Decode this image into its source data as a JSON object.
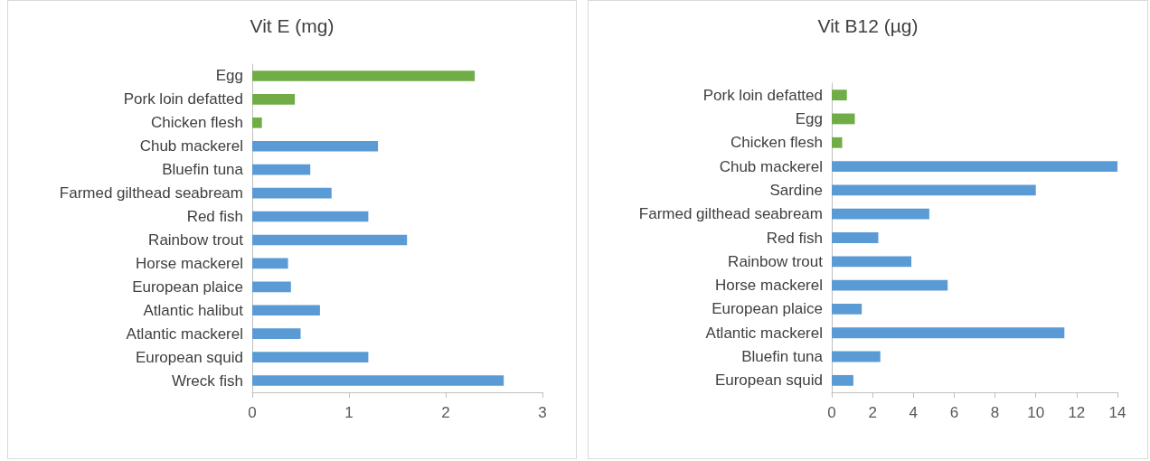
{
  "chart_data": [
    {
      "type": "bar",
      "orientation": "horizontal",
      "title": "Vit E (mg)",
      "categories": [
        "Egg",
        "Pork loin defatted",
        "Chicken flesh",
        "Chub mackerel",
        "Bluefin tuna",
        "Farmed gilthead seabream",
        "Red fish",
        "Rainbow trout",
        "Horse mackerel",
        "European plaice",
        "Atlantic halibut",
        "Atlantic mackerel",
        "European squid",
        "Wreck fish"
      ],
      "values": [
        2.3,
        0.44,
        0.1,
        1.3,
        0.6,
        0.82,
        1.2,
        1.6,
        0.37,
        0.4,
        0.7,
        0.5,
        1.2,
        2.6
      ],
      "colors": [
        "#70ad47",
        "#70ad47",
        "#70ad47",
        "#5b9bd5",
        "#5b9bd5",
        "#5b9bd5",
        "#5b9bd5",
        "#5b9bd5",
        "#5b9bd5",
        "#5b9bd5",
        "#5b9bd5",
        "#5b9bd5",
        "#5b9bd5",
        "#5b9bd5"
      ],
      "xlim": [
        0,
        3
      ],
      "xticks": [
        0,
        1,
        2,
        3
      ],
      "grid": false
    },
    {
      "type": "bar",
      "orientation": "horizontal",
      "title": "Vit B12 (µg)",
      "categories": [
        "Pork loin defatted",
        "Egg",
        "Chicken flesh",
        "Chub mackerel",
        "Sardine",
        "Farmed gilthead seabream",
        "Red fish",
        "Rainbow trout",
        "Horse mackerel",
        "European plaice",
        "Atlantic mackerel",
        "Bluefin tuna",
        "European squid"
      ],
      "values": [
        0.74,
        1.13,
        0.51,
        14,
        10,
        4.78,
        2.28,
        3.9,
        5.68,
        1.47,
        11.4,
        2.38,
        1.06
      ],
      "colors": [
        "#70ad47",
        "#70ad47",
        "#70ad47",
        "#5b9bd5",
        "#5b9bd5",
        "#5b9bd5",
        "#5b9bd5",
        "#5b9bd5",
        "#5b9bd5",
        "#5b9bd5",
        "#5b9bd5",
        "#5b9bd5",
        "#5b9bd5"
      ],
      "xlim": [
        0,
        14
      ],
      "xticks": [
        0,
        2,
        4,
        6,
        8,
        10,
        12,
        14
      ],
      "grid": false
    }
  ]
}
